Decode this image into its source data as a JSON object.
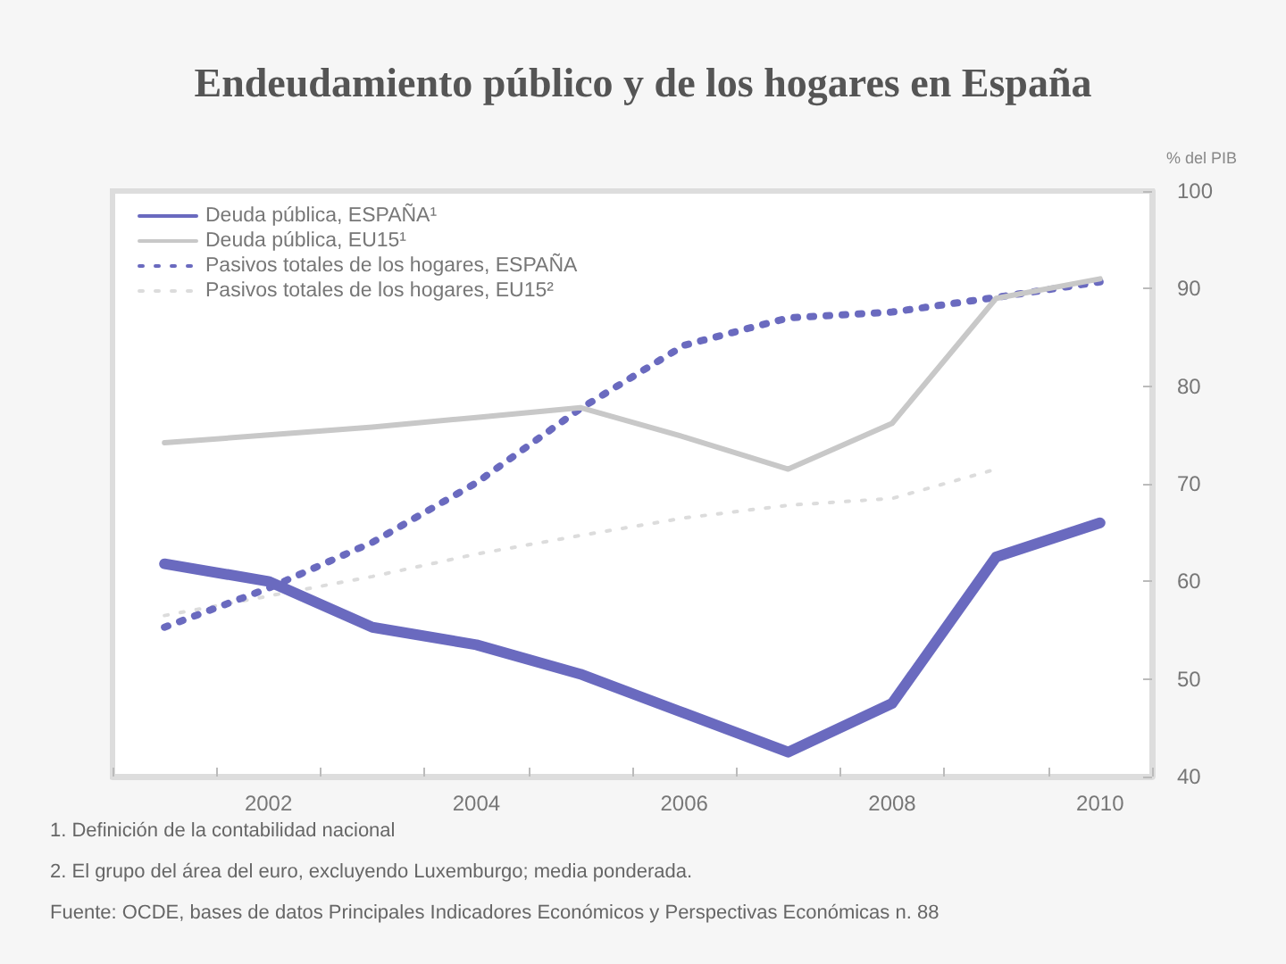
{
  "chart_data": {
    "type": "line",
    "title": "Endeudamiento público y de los hogares en España",
    "ylabel": "% del PIB",
    "categories": [
      null,
      "2002",
      null,
      "2004",
      null,
      "2006",
      null,
      "2008",
      null,
      "2010"
    ],
    "series": [
      {
        "name": "Deuda pública, ESPAÑA¹",
        "color": "#6a6abf",
        "line_style": "solid",
        "values": [
          61.8,
          60.0,
          55.3,
          53.5,
          50.5,
          46.5,
          42.5,
          47.5,
          62.5,
          66.0
        ]
      },
      {
        "name": "Deuda pública, EU15¹",
        "color": "#c8c8c8",
        "line_style": "solid",
        "values": [
          74.2,
          75.0,
          75.8,
          76.8,
          77.8,
          74.8,
          71.5,
          76.2,
          89.0,
          91.0
        ]
      },
      {
        "name": "Pasivos totales de los hogares, ESPAÑA",
        "color": "#6a6abf",
        "line_style": "dotted",
        "values": [
          55.3,
          59.3,
          64.0,
          70.1,
          77.7,
          84.2,
          87.0,
          87.6,
          89.1,
          90.7
        ]
      },
      {
        "name": "Pasivos totales de los hogares, EU15²",
        "color": "#dcdcdc",
        "line_style": "dotted",
        "values": [
          56.5,
          58.5,
          60.5,
          62.8,
          64.7,
          66.5,
          67.8,
          68.5,
          71.5,
          null
        ]
      }
    ],
    "ylim": [
      40,
      100
    ],
    "yticks": [
      40,
      50,
      60,
      70,
      80,
      90,
      100
    ],
    "legend": "top left",
    "marker": "none",
    "annotations": [
      "1. Definición de la contabilidad nacional",
      "2. El grupo del área del euro, excluyendo Luxemburgo; media ponderada.",
      "Fuente: OCDE, bases de datos Principales Indicadores Económicos y Perspectivas Económicas n. 88"
    ]
  }
}
